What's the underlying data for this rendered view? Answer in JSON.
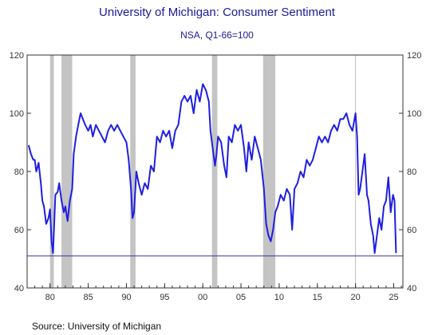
{
  "chart_data": {
    "type": "line",
    "title": "University of Michigan: Consumer Sentiment",
    "subtitle": "NSA, Q1-66=100",
    "source": "Source:  University of Michigan",
    "xlabel": "",
    "ylabel": "",
    "xlim": [
      1977.0,
      2026.2
    ],
    "ylim": [
      40,
      120
    ],
    "y_ticks": [
      40,
      60,
      80,
      100,
      120
    ],
    "y_tick_labels": [
      "40",
      "60",
      "80",
      "100",
      "120"
    ],
    "x_ticks": [
      1980,
      1985,
      1990,
      1995,
      2000,
      2005,
      2010,
      2015,
      2020,
      2025
    ],
    "x_tick_labels": [
      "80",
      "85",
      "90",
      "95",
      "00",
      "05",
      "10",
      "15",
      "20",
      "25"
    ],
    "grid": false,
    "recessions": [
      [
        1980.0,
        1980.5
      ],
      [
        1981.5,
        1982.9
      ],
      [
        1990.5,
        1991.2
      ],
      [
        2001.2,
        2001.9
      ],
      [
        2007.9,
        2009.5
      ]
    ],
    "reference_line": 51,
    "vline_x": 2020.0,
    "line_color": "#1f1fe0",
    "series": [
      {
        "name": "",
        "x": [
          1977.2,
          1977.5,
          1977.8,
          1978.0,
          1978.2,
          1978.5,
          1978.8,
          1979.0,
          1979.2,
          1979.5,
          1979.8,
          1980.0,
          1980.2,
          1980.4,
          1980.7,
          1981.0,
          1981.2,
          1981.5,
          1981.8,
          1982.0,
          1982.3,
          1982.6,
          1982.9,
          1983.1,
          1983.4,
          1983.7,
          1984.0,
          1984.3,
          1984.6,
          1985.0,
          1985.3,
          1985.6,
          1986.0,
          1986.4,
          1986.8,
          1987.2,
          1987.6,
          1988.0,
          1988.4,
          1988.8,
          1989.2,
          1989.6,
          1990.0,
          1990.3,
          1990.6,
          1990.8,
          1991.0,
          1991.3,
          1991.6,
          1992.0,
          1992.4,
          1992.8,
          1993.2,
          1993.6,
          1994.0,
          1994.4,
          1994.8,
          1995.2,
          1995.6,
          1996.0,
          1996.4,
          1996.8,
          1997.2,
          1997.6,
          1998.0,
          1998.4,
          1998.8,
          1999.2,
          1999.6,
          2000.0,
          2000.4,
          2000.8,
          2001.0,
          2001.3,
          2001.6,
          2001.8,
          2002.0,
          2002.4,
          2002.8,
          2003.1,
          2003.4,
          2003.8,
          2004.2,
          2004.6,
          2005.0,
          2005.4,
          2005.7,
          2006.0,
          2006.4,
          2006.8,
          2007.2,
          2007.6,
          2008.0,
          2008.3,
          2008.6,
          2008.9,
          2009.2,
          2009.5,
          2009.8,
          2010.2,
          2010.6,
          2011.0,
          2011.4,
          2011.7,
          2012.0,
          2012.4,
          2012.8,
          2013.2,
          2013.6,
          2014.0,
          2014.4,
          2014.8,
          2015.2,
          2015.6,
          2016.0,
          2016.4,
          2016.8,
          2017.2,
          2017.6,
          2018.0,
          2018.4,
          2018.8,
          2019.2,
          2019.6,
          2020.0,
          2020.2,
          2020.4,
          2020.6,
          2020.9,
          2021.2,
          2021.5,
          2021.7,
          2022.0,
          2022.3,
          2022.5,
          2022.8,
          2023.1,
          2023.4,
          2023.7,
          2024.0,
          2024.3,
          2024.6,
          2024.9,
          2025.1,
          2025.3
        ],
        "values": [
          89,
          86,
          84,
          84,
          80,
          83,
          76,
          70,
          68,
          62,
          64,
          67,
          56,
          52,
          72,
          73,
          76,
          70,
          66,
          68,
          63,
          70,
          74,
          86,
          92,
          96,
          100,
          98,
          96,
          94,
          96,
          92,
          96,
          94,
          92,
          90,
          94,
          96,
          94,
          96,
          94,
          92,
          90,
          84,
          74,
          64,
          66,
          80,
          76,
          72,
          76,
          74,
          82,
          80,
          92,
          90,
          94,
          92,
          94,
          88,
          94,
          96,
          104,
          106,
          104,
          106,
          100,
          108,
          104,
          110,
          108,
          104,
          94,
          88,
          82,
          86,
          92,
          90,
          82,
          78,
          92,
          90,
          96,
          94,
          96,
          88,
          80,
          90,
          84,
          92,
          88,
          84,
          74,
          62,
          58,
          56,
          60,
          66,
          68,
          72,
          70,
          74,
          72,
          60,
          74,
          76,
          80,
          78,
          84,
          82,
          84,
          88,
          92,
          90,
          92,
          90,
          94,
          96,
          94,
          98,
          98,
          100,
          96,
          94,
          100,
          92,
          72,
          74,
          80,
          86,
          72,
          70,
          62,
          58,
          52,
          58,
          64,
          60,
          68,
          70,
          78,
          66,
          72,
          70,
          52
        ]
      }
    ]
  }
}
